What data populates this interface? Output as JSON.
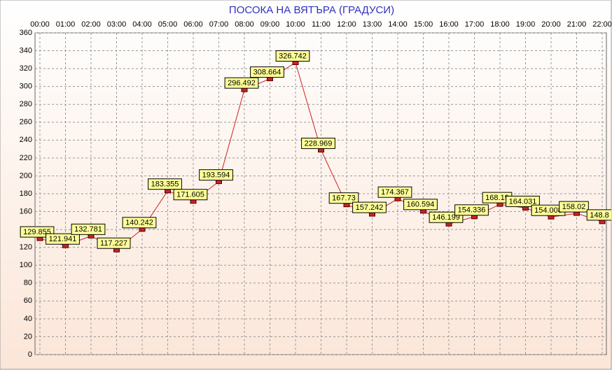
{
  "chart_data": {
    "type": "line",
    "title": "ПОСОКА НА ВЯТЪРА    (ГРАДУСИ)",
    "categories": [
      "00:00",
      "01:00",
      "02:00",
      "03:00",
      "04:00",
      "05:00",
      "06:00",
      "07:00",
      "08:00",
      "09:00",
      "10:00",
      "11:00",
      "12:00",
      "13:00",
      "14:00",
      "15:00",
      "16:00",
      "17:00",
      "18:00",
      "19:00",
      "20:00",
      "21:00",
      "22:00"
    ],
    "series": [
      {
        "color": "#cc2222",
        "values": [
          129.855,
          121.941,
          132.781,
          117.227,
          140.242,
          183.355,
          171.605,
          193.594,
          296.492,
          308.664,
          326.742,
          228.969,
          167.73,
          157.242,
          174.367,
          160.594,
          146.199,
          154.336,
          168.19,
          164.031,
          154.008,
          158.02,
          148.8
        ]
      }
    ],
    "ylim": [
      0,
      360
    ],
    "yticks": [
      0,
      20,
      40,
      60,
      80,
      100,
      120,
      140,
      160,
      180,
      200,
      220,
      240,
      260,
      280,
      300,
      320,
      340,
      360
    ],
    "grid": true
  }
}
